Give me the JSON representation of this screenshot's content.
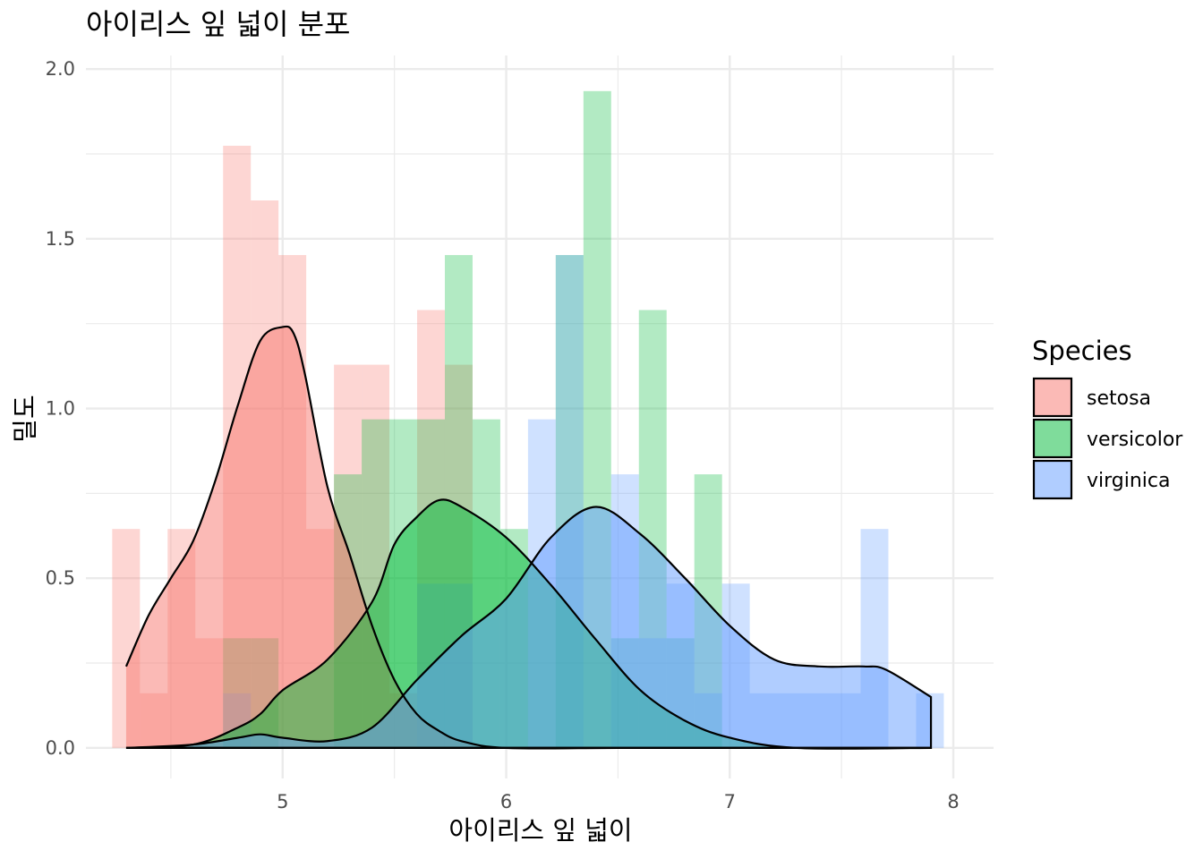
{
  "chart_data": {
    "type": "histogram+density",
    "title": "아이리스 잎 넓이 분포",
    "xlabel": "아이리스 잎 넓이",
    "ylabel": "밀도",
    "xlim": [
      4.12,
      8.18
    ],
    "ylim": [
      -0.09,
      2.04
    ],
    "x_ticks": [
      "5",
      "6",
      "7",
      "8"
    ],
    "y_ticks": [
      "0.0",
      "0.5",
      "1.0",
      "1.5",
      "2.0"
    ],
    "grid": true,
    "legend": {
      "title": "Species",
      "position": "right"
    },
    "bins": {
      "start": 4.2375,
      "width": 0.124,
      "count": 30
    },
    "series": [
      {
        "name": "setosa",
        "color": "#F8766D",
        "histogram_density": [
          0.645,
          0.161,
          0.645,
          0.323,
          1.774,
          1.613,
          1.452,
          0.645,
          1.129,
          1.129,
          0.161,
          1.29,
          1.129,
          0,
          0,
          0,
          0,
          0,
          0,
          0,
          0,
          0,
          0,
          0,
          0,
          0,
          0,
          0,
          0,
          0
        ],
        "density_x": [
          4.3,
          4.4,
          4.5,
          4.6,
          4.7,
          4.8,
          4.9,
          5.0,
          5.05,
          5.1,
          5.2,
          5.3,
          5.4,
          5.5,
          5.6,
          5.7,
          5.8,
          6.0,
          6.5,
          7.0,
          7.9
        ],
        "density_y": [
          0.24,
          0.39,
          0.5,
          0.61,
          0.79,
          1.01,
          1.2,
          1.24,
          1.22,
          1.1,
          0.77,
          0.57,
          0.36,
          0.2,
          0.1,
          0.05,
          0.02,
          0.0,
          0.0,
          0.0,
          0.0
        ]
      },
      {
        "name": "versicolor",
        "color": "#00BA38",
        "histogram_density": [
          0,
          0,
          0,
          0,
          0.323,
          0.323,
          0,
          0,
          0.806,
          0.968,
          0.968,
          0.968,
          1.452,
          0.968,
          0.645,
          0,
          1.452,
          1.935,
          0.323,
          1.29,
          0.323,
          0.806,
          0,
          0,
          0,
          0,
          0,
          0,
          0,
          0
        ],
        "density_x": [
          4.3,
          4.6,
          4.8,
          4.9,
          5.0,
          5.2,
          5.4,
          5.5,
          5.6,
          5.7,
          5.8,
          6.0,
          6.2,
          6.4,
          6.6,
          6.8,
          7.0,
          7.3,
          7.9
        ],
        "density_y": [
          0.0,
          0.01,
          0.06,
          0.1,
          0.17,
          0.26,
          0.43,
          0.6,
          0.68,
          0.73,
          0.71,
          0.62,
          0.48,
          0.32,
          0.17,
          0.08,
          0.03,
          0.0,
          0.0
        ]
      },
      {
        "name": "virginica",
        "color": "#619CFF",
        "histogram_density": [
          0,
          0,
          0,
          0,
          0.161,
          0,
          0,
          0,
          0,
          0,
          0,
          0.484,
          0.484,
          0,
          0,
          0.968,
          1.452,
          0,
          0.806,
          0.323,
          0.484,
          0.161,
          0.484,
          0.161,
          0.161,
          0.161,
          0.161,
          0.645,
          0,
          0.161
        ],
        "density_x": [
          4.3,
          4.6,
          4.8,
          4.9,
          5.0,
          5.2,
          5.4,
          5.6,
          5.8,
          6.0,
          6.2,
          6.4,
          6.6,
          6.8,
          7.0,
          7.2,
          7.4,
          7.6,
          7.7,
          7.9
        ],
        "density_y": [
          0.0,
          0.01,
          0.03,
          0.04,
          0.03,
          0.02,
          0.06,
          0.2,
          0.33,
          0.44,
          0.62,
          0.71,
          0.63,
          0.5,
          0.36,
          0.26,
          0.24,
          0.24,
          0.23,
          0.15
        ]
      }
    ]
  }
}
